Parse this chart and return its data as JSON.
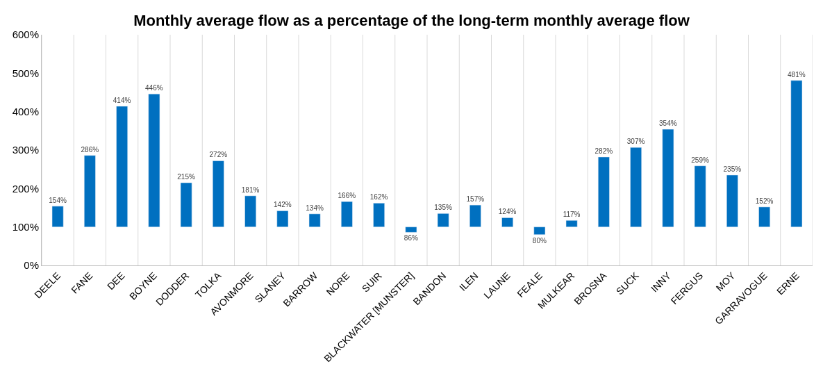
{
  "chart_data": {
    "type": "bar",
    "title": "Monthly average flow as a percentage of the long-term monthly average flow",
    "categories": [
      "DEELE",
      "FANE",
      "DEE",
      "BOYNE",
      "DODDER",
      "TOLKA",
      "AVONMORE",
      "SLANEY",
      "BARROW",
      "NORE",
      "SUIR",
      "BLACKWATER [MUNSTER]",
      "BANDON",
      "ILEN",
      "LAUNE",
      "FEALE",
      "MULKEAR",
      "BROSNA",
      "SUCK",
      "INNY",
      "FERGUS",
      "MOY",
      "GARRAVOGUE",
      "ERNE"
    ],
    "base": [
      100,
      100,
      100,
      100,
      100,
      100,
      100,
      100,
      100,
      100,
      100,
      100,
      100,
      100,
      100,
      100,
      100,
      100,
      100,
      100,
      100,
      100,
      100,
      100
    ],
    "values": [
      54,
      186,
      314,
      346,
      115,
      172,
      81,
      42,
      34,
      66,
      62,
      -14,
      35,
      57,
      24,
      -20,
      17,
      182,
      207,
      254,
      159,
      135,
      52,
      381
    ],
    "value_labels": [
      "154%",
      "286%",
      "414%",
      "446%",
      "215%",
      "272%",
      "181%",
      "142%",
      "134%",
      "166%",
      "162%",
      "86%",
      "135%",
      "157%",
      "124%",
      "80%",
      "117%",
      "282%",
      "307%",
      "354%",
      "259%",
      "235%",
      "152%",
      "481%"
    ],
    "color": "#0070c0",
    "ylim": [
      0,
      600
    ],
    "yticks": [
      {
        "value": 0,
        "label": "0%"
      },
      {
        "value": 100,
        "label": "100%"
      },
      {
        "value": 200,
        "label": "200%"
      },
      {
        "value": 300,
        "label": "300%"
      },
      {
        "value": 400,
        "label": "400%"
      },
      {
        "value": 500,
        "label": "500%"
      },
      {
        "value": 600,
        "label": "600%"
      }
    ],
    "grid": "x",
    "legend": false
  }
}
